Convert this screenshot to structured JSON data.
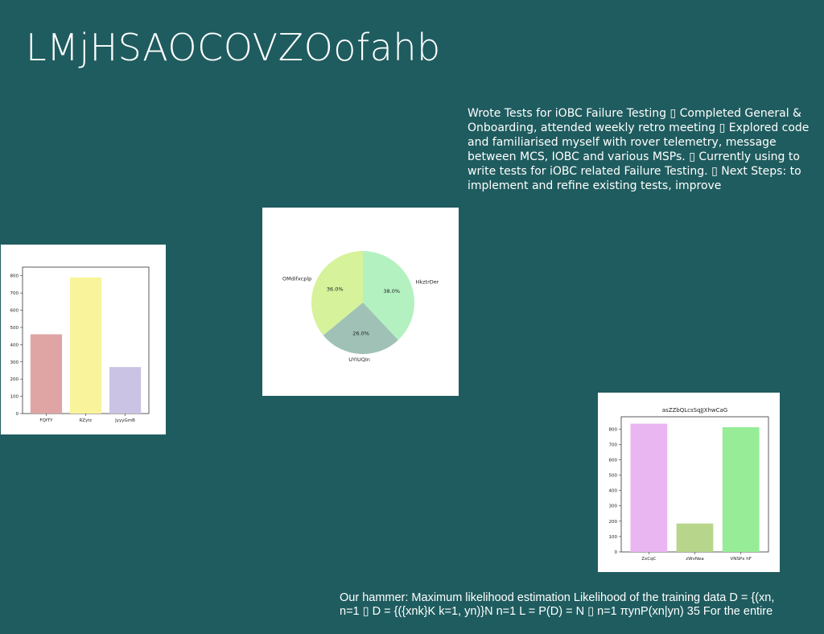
{
  "slide": {
    "title": "LMjHSAOCOVZOofahb",
    "notes": "Wrote Tests for iOBC Failure Testing ▯ Completed General & Onboarding, attended weekly retro meeting ▯ Explored code and familiarised myself with rover telemetry, message between MCS, IOBC and various MSPs. ▯ Currently using to write tests for iOBC related Failure Testing. ▯ Next Steps: to implement and refine existing tests, improve",
    "formula_line1": "Our hammer: Maximum likelihood estimation Likelihood of the training data D = {(xn,",
    "formula_line2": "n=1 ▯ D = {({xnk}K k=1, yn)}N n=1 L = P(D) = N ▯ n=1 πynP(xn|yn) 35 For the entire"
  },
  "chart_data": [
    {
      "type": "bar",
      "title": "",
      "categories": [
        "FQfTY",
        "RZytc",
        "JyyyGmB"
      ],
      "values": [
        460,
        790,
        270
      ],
      "colors": [
        "#dea5a4",
        "#f9f49b",
        "#cbc3e3"
      ],
      "ylim": [
        0,
        850
      ],
      "yticks": [
        0,
        100,
        200,
        300,
        400,
        500,
        600,
        700,
        800
      ]
    },
    {
      "type": "pie",
      "title": "",
      "labels": [
        "HkztrDer",
        "UYIUQIn",
        "OMdifxcplp"
      ],
      "values": [
        38.0,
        26.0,
        36.0
      ],
      "value_labels": [
        "38.0%",
        "26.0%",
        "36.0%"
      ],
      "colors": [
        "#b3f2c0",
        "#9fc1b6",
        "#d6f29a"
      ]
    },
    {
      "type": "bar",
      "title": "asZZbQLcsSqJJXhwCaG",
      "categories": [
        "ZxCqC",
        "zWvNea",
        "VNSPx hF"
      ],
      "values": [
        835,
        185,
        812
      ],
      "colors": [
        "#eab6f2",
        "#b7d68c",
        "#97ec98"
      ],
      "ylim": [
        0,
        880
      ],
      "yticks": [
        0,
        100,
        200,
        300,
        400,
        500,
        600,
        700,
        800
      ]
    }
  ]
}
